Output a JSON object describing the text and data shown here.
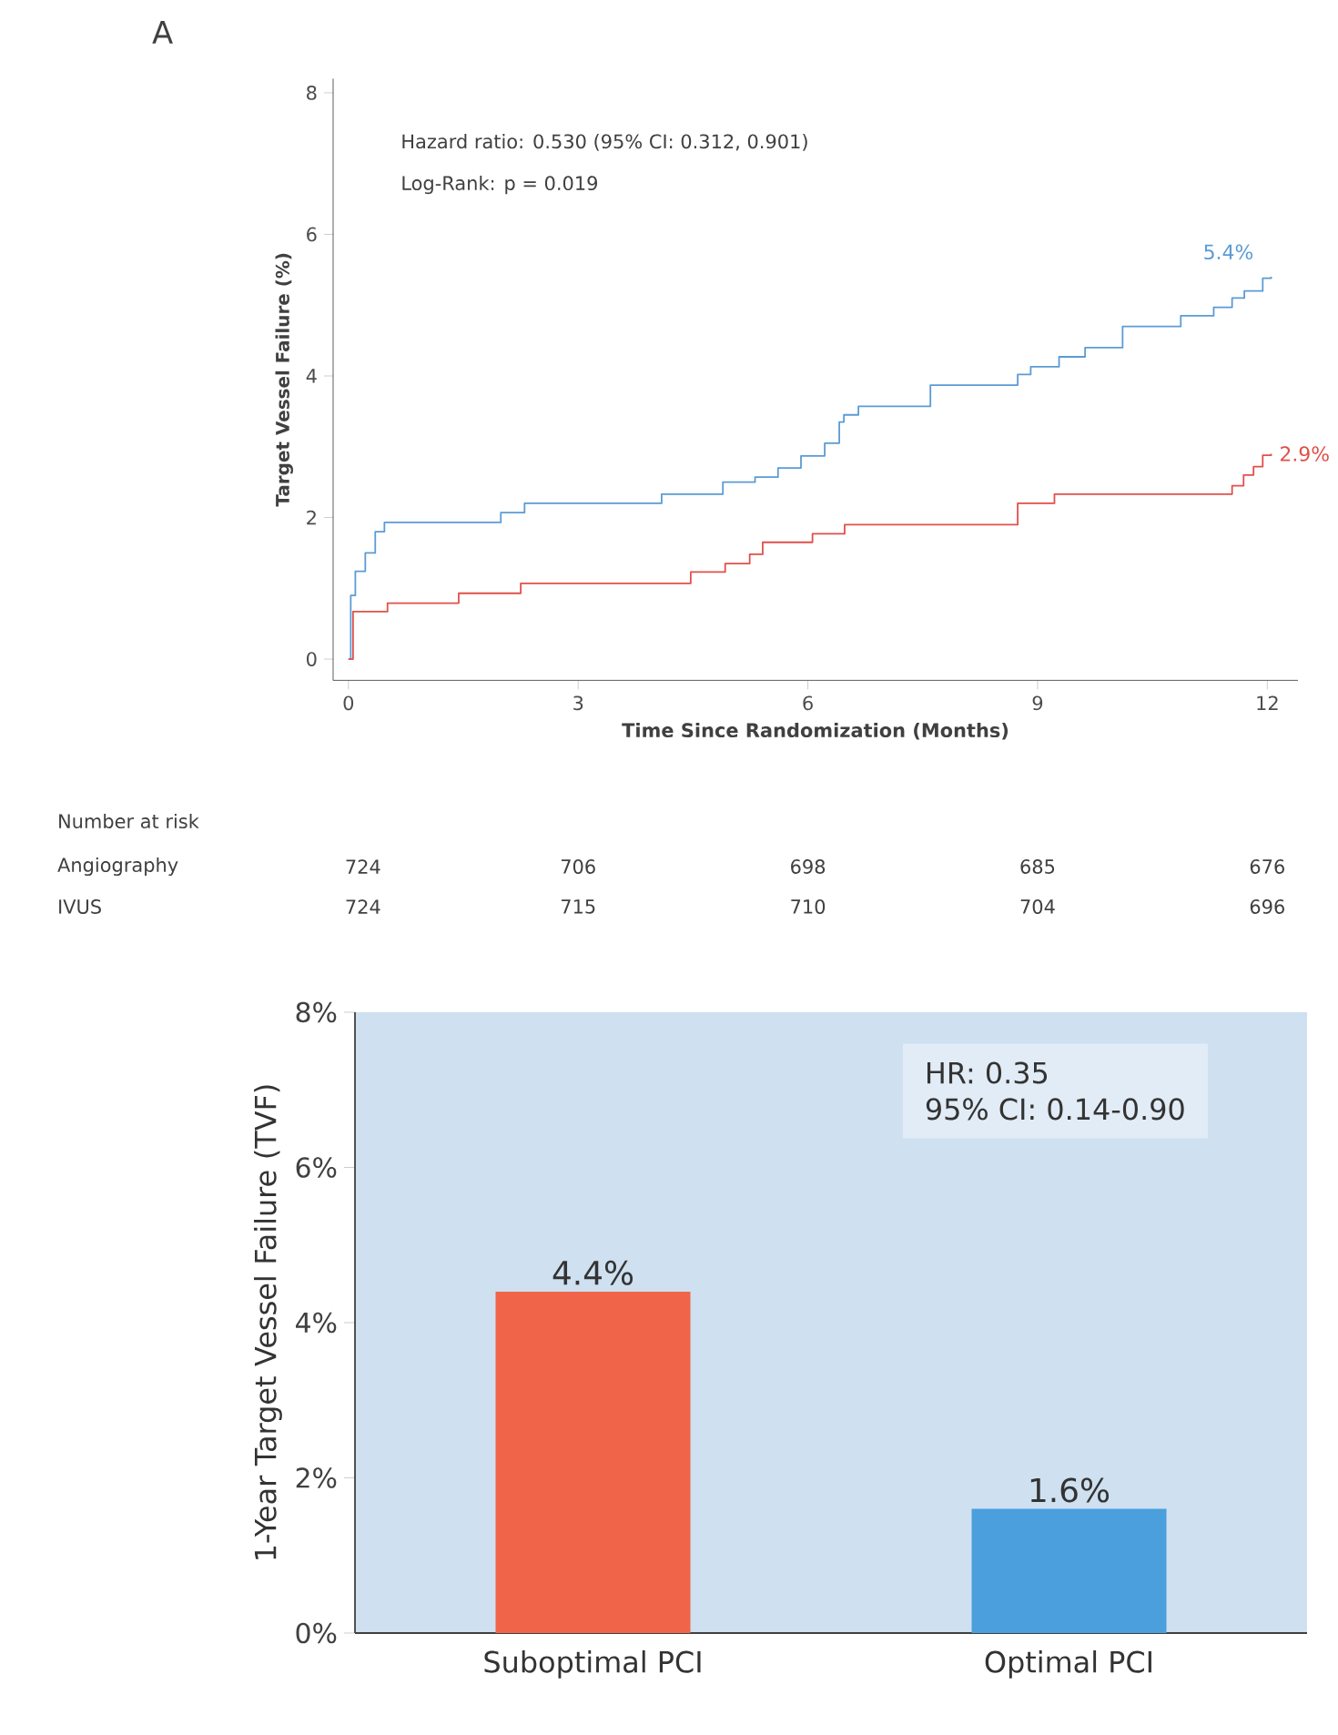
{
  "chart_data": [
    {
      "type": "step",
      "title": "A",
      "xlabel": "Time Since Randomization (Months)",
      "ylabel": "Target Vessel Failure (%)",
      "xlim": [
        -0.2,
        12.4
      ],
      "ylim": [
        -0.3,
        8.2
      ],
      "xticks": [
        0,
        3,
        6,
        9,
        12
      ],
      "yticks": [
        0,
        2,
        4,
        6,
        8
      ],
      "series": [
        {
          "color": "#5b9bd5",
          "x": [
            0,
            0.03,
            0.09,
            0.22,
            0.35,
            0.47,
            1.99,
            2.3,
            4.09,
            4.89,
            5.31,
            5.61,
            5.91,
            6.22,
            6.41,
            6.47,
            6.66,
            7.6,
            8.74,
            8.91,
            9.28,
            9.62,
            10.11,
            10.87,
            11.3,
            11.54,
            11.7,
            11.94,
            12.05
          ],
          "values": [
            0,
            0.9,
            1.24,
            1.5,
            1.8,
            1.93,
            2.07,
            2.2,
            2.33,
            2.5,
            2.57,
            2.7,
            2.87,
            3.05,
            3.35,
            3.45,
            3.57,
            3.87,
            4.02,
            4.13,
            4.27,
            4.4,
            4.7,
            4.85,
            4.97,
            5.1,
            5.2,
            5.38,
            5.4
          ]
        },
        {
          "color": "#e0504a",
          "x": [
            0,
            0.06,
            0.51,
            1.44,
            2.25,
            4.47,
            4.92,
            5.24,
            5.41,
            6.06,
            6.48,
            8.74,
            9.22,
            11.54,
            11.69,
            11.82,
            11.94,
            12.05
          ],
          "values": [
            0,
            0.67,
            0.79,
            0.93,
            1.07,
            1.23,
            1.35,
            1.48,
            1.65,
            1.77,
            1.9,
            2.2,
            2.33,
            2.45,
            2.6,
            2.72,
            2.88,
            2.9
          ]
        }
      ],
      "annotations": [
        "Hazard ratio: 0.530 (95% CI: 0.312, 0.901)",
        "Log-Rank: p = 0.019",
        {
          "text": "5.4%",
          "x": 12,
          "y": 5.4
        },
        {
          "text": "2.9%",
          "x": 12,
          "y": 2.9
        },
        "Number at risk",
        "Angiography",
        "724",
        "706",
        "698",
        "685",
        "676",
        "IVUS",
        "724",
        "715",
        "710",
        "704",
        "696"
      ]
    },
    {
      "type": "bar",
      "ylabel": "1-Year Target Vessel Failure (TVF)",
      "categories": [
        "Suboptimal PCI",
        "Optimal PCI"
      ],
      "values": [
        4.4,
        1.6
      ],
      "colors": [
        "#f0654a",
        "#4a9fdc"
      ],
      "value_labels": [
        "4.4%",
        "1.6%"
      ],
      "ylim": [
        0,
        8
      ],
      "yticks": [
        {
          "value": 0,
          "label": "0%"
        },
        {
          "value": 2,
          "label": "2%"
        },
        {
          "value": 4,
          "label": "4%"
        },
        {
          "value": 6,
          "label": "6%"
        },
        {
          "value": 8,
          "label": "8%"
        }
      ],
      "annotations": [
        "HR: 0.35",
        "95% CI: 0.14-0.90"
      ]
    }
  ]
}
